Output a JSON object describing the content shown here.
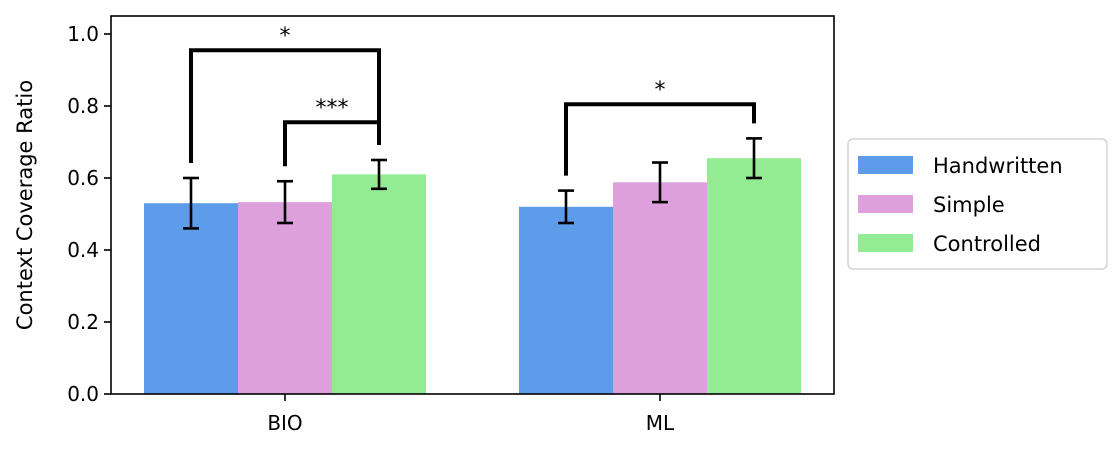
{
  "chart_data": {
    "type": "bar",
    "title": "",
    "xlabel": "",
    "ylabel": "Context Coverage Ratio",
    "ylim": [
      0.0,
      1.05
    ],
    "yticks": [
      0.0,
      0.2,
      0.4,
      0.6,
      0.8,
      1.0
    ],
    "ytick_labels": [
      "0.0",
      "0.2",
      "0.4",
      "0.6",
      "0.8",
      "1.0"
    ],
    "categories": [
      "BIO",
      "ML"
    ],
    "series": [
      {
        "name": "Handwritten",
        "color": "#5e9be8",
        "values": [
          0.53,
          0.52
        ],
        "errors": [
          0.07,
          0.045
        ]
      },
      {
        "name": "Simple",
        "color": "#dda0dd",
        "values": [
          0.533,
          0.588
        ],
        "errors": [
          0.058,
          0.055
        ]
      },
      {
        "name": "Controlled",
        "color": "#93eb93",
        "values": [
          0.61,
          0.655
        ],
        "errors": [
          0.04,
          0.055
        ]
      }
    ],
    "significance": [
      {
        "category": 0,
        "from_series": 0,
        "to_series": 2,
        "label": "*",
        "level": 0.955
      },
      {
        "category": 0,
        "from_series": 1,
        "to_series": 2,
        "label": "***",
        "level": 0.755
      },
      {
        "category": 1,
        "from_series": 0,
        "to_series": 2,
        "label": "*",
        "level": 0.805
      }
    ],
    "grid": false,
    "legend": "outside-right"
  }
}
